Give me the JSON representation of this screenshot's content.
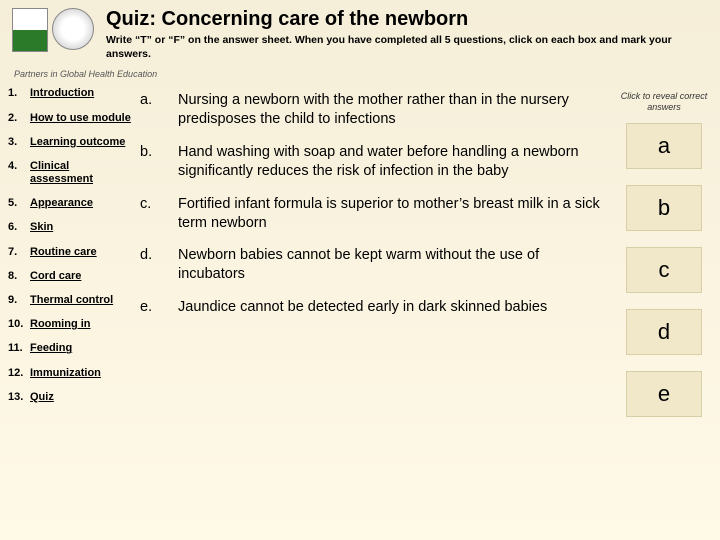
{
  "header": {
    "title": "Quiz: Concerning care of the newborn",
    "subtitle": "Write “T” or “F” on the answer sheet. When you have completed all 5 questions, click on each box and mark your answers.",
    "partners": "Partners in Global Health Education"
  },
  "nav": [
    {
      "num": "1.",
      "label": "Introduction"
    },
    {
      "num": "2.",
      "label": "How to use module"
    },
    {
      "num": "3.",
      "label": "Learning outcome"
    },
    {
      "num": "4.",
      "label": "Clinical assessment"
    },
    {
      "num": "5.",
      "label": "Appearance"
    },
    {
      "num": "6.",
      "label": "Skin"
    },
    {
      "num": "7.",
      "label": "Routine care"
    },
    {
      "num": "8.",
      "label": "Cord care"
    },
    {
      "num": "9.",
      "label": "Thermal control"
    },
    {
      "num": "10.",
      "label": "Rooming in"
    },
    {
      "num": "11.",
      "label": "Feeding"
    },
    {
      "num": "12.",
      "label": "Immunization"
    },
    {
      "num": "13.",
      "label": "Quiz"
    }
  ],
  "questions": [
    {
      "letter": "a.",
      "text": "Nursing a newborn with the mother rather than in the nursery predisposes the child to infections"
    },
    {
      "letter": "b.",
      "text": "Hand washing with soap and water before handling a newborn significantly reduces the risk of infection in the baby"
    },
    {
      "letter": "c.",
      "text": "Fortified infant formula is superior to mother’s breast milk in a sick term newborn"
    },
    {
      "letter": "d.",
      "text": "Newborn babies cannot be kept warm without the use of incubators"
    },
    {
      "letter": "e.",
      "text": "Jaundice cannot be detected early in dark skinned babies"
    }
  ],
  "answers": {
    "hint": "Click to reveal correct answers",
    "boxes": [
      "a",
      "b",
      "c",
      "d",
      "e"
    ]
  }
}
